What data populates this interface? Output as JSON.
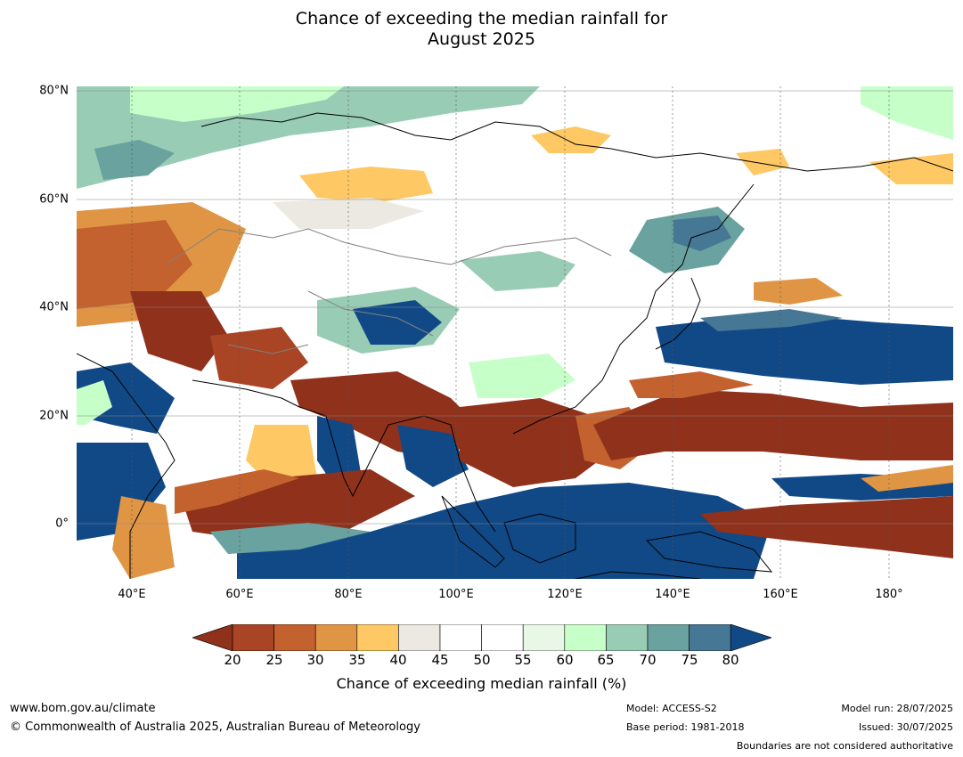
{
  "title": {
    "line1": "Chance of exceeding the median rainfall for",
    "line2": "August 2025"
  },
  "map": {
    "lat_labels": [
      "80°N",
      "60°N",
      "40°N",
      "20°N",
      "0°"
    ],
    "lon_labels": [
      "40°E",
      "60°E",
      "80°E",
      "100°E",
      "120°E",
      "140°E",
      "160°E",
      "180°"
    ],
    "extent": {
      "lon": [
        30,
        192
      ],
      "lat": [
        -10,
        81
      ]
    }
  },
  "colorbar": {
    "label": "Chance of exceeding median rainfall (%)",
    "ticks": [
      "20",
      "25",
      "30",
      "35",
      "40",
      "45",
      "50",
      "55",
      "60",
      "65",
      "70",
      "75",
      "80"
    ],
    "colors": {
      "lt20": "#8f311b",
      "c20_25": "#a94424",
      "c25_30": "#c3622f",
      "c30_35": "#e09545",
      "c35_40": "#fec864",
      "c40_45": "#ece9e2",
      "c45_50": "#ffffff",
      "c50_55": "#ffffff",
      "c55_60": "#e8f7e6",
      "c60_65": "#c7ffc9",
      "c65_70": "#99ccb5",
      "c70_75": "#69a29f",
      "c75_80": "#467794",
      "gt80": "#114987"
    }
  },
  "footer": {
    "url": "www.bom.gov.au/climate",
    "copyright": "© Commonwealth of Australia 2025, Australian Bureau of Meteorology",
    "model": "Model: ACCESS-S2",
    "base_period": "Base period: 1981-2018",
    "model_run": "Model run: 28/07/2025",
    "issued": "Issued: 30/07/2025",
    "disclaimer": "Boundaries are not considered authoritative"
  }
}
